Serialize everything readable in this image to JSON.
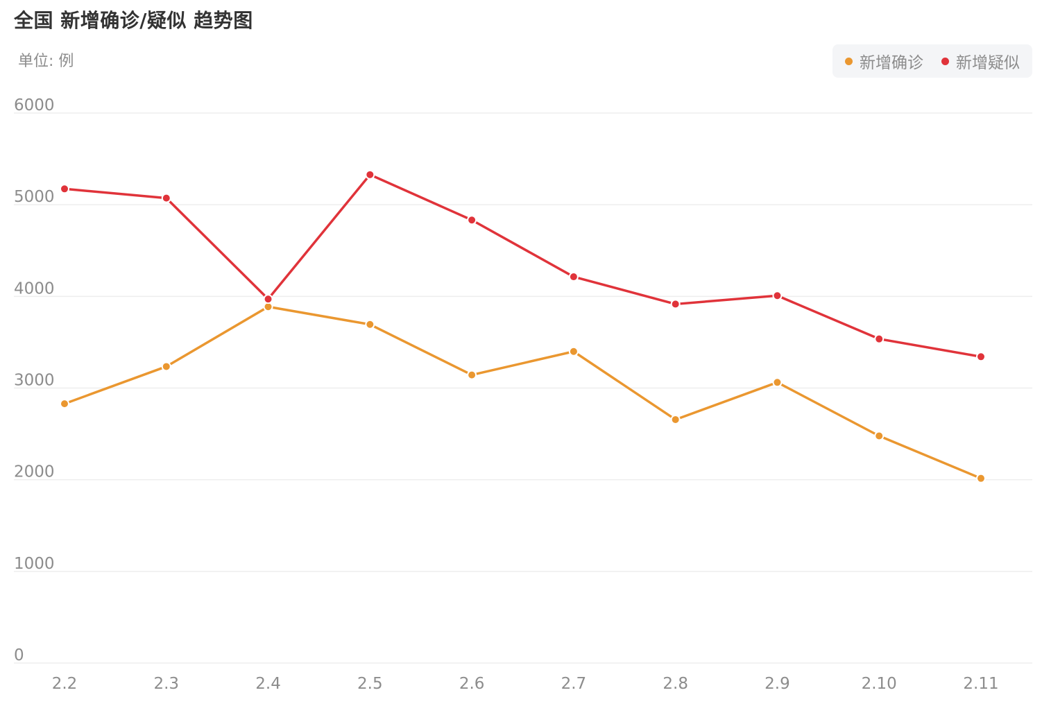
{
  "title": "全国 新增确诊/疑似 趋势图",
  "unit_label": "单位: 例",
  "colors": {
    "confirmed": "#ea9730",
    "suspected": "#e0333a",
    "grid": "#eeeeee",
    "axis_text": "#8c8c8c"
  },
  "legend": [
    {
      "label": "新增确诊",
      "color": "#ea9730"
    },
    {
      "label": "新增疑似",
      "color": "#e0333a"
    }
  ],
  "chart_data": {
    "type": "line",
    "title": "全国 新增确诊/疑似 趋势图",
    "ylabel": "单位: 例",
    "categories": [
      "2.2",
      "2.3",
      "2.4",
      "2.5",
      "2.6",
      "2.7",
      "2.8",
      "2.9",
      "2.10",
      "2.11"
    ],
    "yticks": [
      "0",
      "1000",
      "2000",
      "3000",
      "4000",
      "5000",
      "6000"
    ],
    "ylim": [
      0,
      6000
    ],
    "grid": true,
    "legend_position": "top-right",
    "series": [
      {
        "name": "新增确诊",
        "color": "#ea9730",
        "values": [
          2829,
          3235,
          3887,
          3694,
          3143,
          3399,
          2656,
          3062,
          2478,
          2015
        ]
      },
      {
        "name": "新增疑似",
        "color": "#e0333a",
        "values": [
          5173,
          5072,
          3971,
          5328,
          4833,
          4214,
          3916,
          4008,
          3536,
          3342
        ]
      }
    ]
  }
}
